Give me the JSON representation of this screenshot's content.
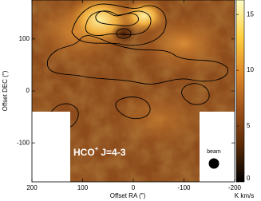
{
  "chart_data": {
    "type": "image",
    "xlabel": "Offset RA (\")",
    "ylabel": "Offset DEC (\")",
    "xlim": [
      200,
      -200
    ],
    "xticks": [
      200,
      100,
      0,
      -100,
      -200
    ],
    "ylim": [
      -175,
      175
    ],
    "yticks": [
      100,
      0,
      -100
    ],
    "colorbar": {
      "label": "K km/s",
      "lim": [
        0,
        16.3
      ],
      "ticks": [
        0,
        5,
        10,
        15
      ],
      "colormap": [
        "#000000",
        "#5a2a08",
        "#a0521a",
        "#e08a2a",
        "#ffd040",
        "#ffffc8"
      ]
    },
    "annotation": {
      "text": "HCO",
      "superscript": "+",
      "transition": "J=4-3"
    },
    "beam_label": "beam"
  }
}
